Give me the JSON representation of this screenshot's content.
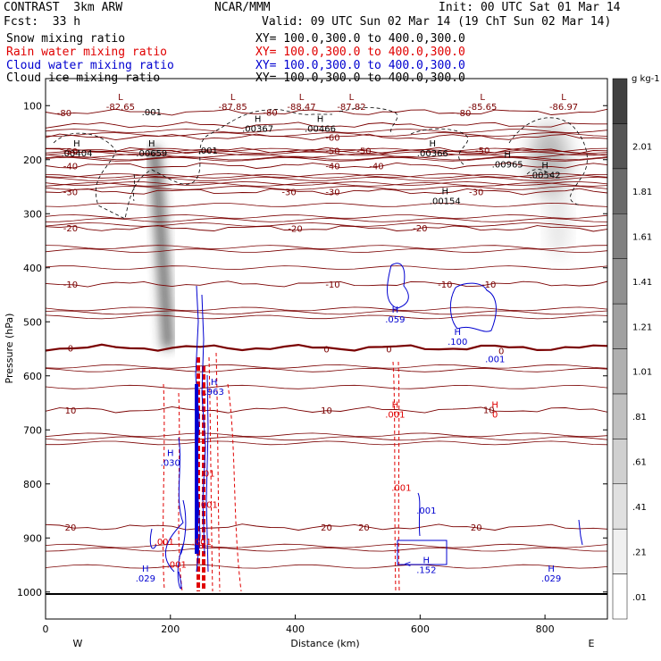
{
  "header": {
    "model": "CONTRAST  3km ARW",
    "org": "NCAR/MMM",
    "init": "Init: 00 UTC Sat 01 Mar 14",
    "fcst": "Fcst:  33 h",
    "valid": "Valid: 09 UTC Sun 02 Mar 14 (19 ChT Sun 02 Mar 14)",
    "fields": [
      {
        "name": "Snow mixing ratio",
        "xy": "XY= 100.0,300.0 to 400.0,300.0",
        "color": "#000000"
      },
      {
        "name": "Rain water mixing ratio",
        "xy": "XY= 100.0,300.0 to 400.0,300.0",
        "color": "#e00000"
      },
      {
        "name": "Cloud water mixing ratio",
        "xy": "XY= 100.0,300.0 to 400.0,300.0",
        "color": "#0000d0"
      },
      {
        "name": "Cloud ice mixing ratio",
        "xy": "XY= 100.0,300.0 to 400.0,300.0",
        "color": "#000000"
      }
    ]
  },
  "colors": {
    "temp": "#7a0000",
    "rain": "#e00000",
    "cloud": "#0000d0",
    "ice": "#000000",
    "snow_shade": "#444444"
  },
  "chart_data": {
    "type": "cross-section",
    "xlabel": "Distance (km)",
    "ylabel": "Pressure (hPa)",
    "xlim": [
      0,
      900
    ],
    "ylim": [
      1050,
      50
    ],
    "x_ticks": [
      0,
      200,
      400,
      600,
      800
    ],
    "y_ticks": [
      100,
      200,
      300,
      400,
      500,
      600,
      700,
      800,
      900,
      1000
    ],
    "x_end_labels": {
      "left": "W",
      "right": "E"
    },
    "isotherms": [
      {
        "temp": -80,
        "p": 112
      },
      {
        "temp": -70,
        "p": 136
      },
      {
        "temp": -60,
        "p": 158
      },
      {
        "temp": -50,
        "p": 183
      },
      {
        "temp": -40,
        "p": 211
      },
      {
        "temp": -30,
        "p": 259
      },
      {
        "temp": -20,
        "p": 327
      },
      {
        "temp": -10,
        "p": 430
      },
      {
        "temp": 0,
        "p": 548
      },
      {
        "temp": 10,
        "p": 663
      },
      {
        "temp": 20,
        "p": 880
      }
    ],
    "isotherm_labels": [
      {
        "text": "-80",
        "x": 30,
        "p": 113
      },
      {
        "text": "-80",
        "x": 360,
        "p": 112
      },
      {
        "text": "-80",
        "x": 670,
        "p": 113
      },
      {
        "text": "-60",
        "x": 460,
        "p": 158
      },
      {
        "text": "-50",
        "x": 40,
        "p": 184
      },
      {
        "text": "-50",
        "x": 460,
        "p": 183
      },
      {
        "text": "-50",
        "x": 510,
        "p": 183
      },
      {
        "text": "-50",
        "x": 700,
        "p": 182
      },
      {
        "text": "-40",
        "x": 40,
        "p": 211
      },
      {
        "text": "-40",
        "x": 460,
        "p": 211
      },
      {
        "text": "-40",
        "x": 530,
        "p": 211
      },
      {
        "text": "-30",
        "x": 40,
        "p": 259
      },
      {
        "text": "-30",
        "x": 390,
        "p": 259
      },
      {
        "text": "-30",
        "x": 460,
        "p": 259
      },
      {
        "text": "-30",
        "x": 690,
        "p": 259
      },
      {
        "text": "-20",
        "x": 40,
        "p": 326
      },
      {
        "text": "-20",
        "x": 400,
        "p": 327
      },
      {
        "text": "-20",
        "x": 600,
        "p": 326
      },
      {
        "text": "-10",
        "x": 40,
        "p": 430
      },
      {
        "text": "-10",
        "x": 460,
        "p": 430
      },
      {
        "text": "-10",
        "x": 640,
        "p": 430
      },
      {
        "text": "-10",
        "x": 710,
        "p": 430
      },
      {
        "text": "0",
        "x": 40,
        "p": 548
      },
      {
        "text": "0",
        "x": 450,
        "p": 550
      },
      {
        "text": "0",
        "x": 550,
        "p": 550
      },
      {
        "text": "0",
        "x": 730,
        "p": 553
      },
      {
        "text": "10",
        "x": 40,
        "p": 663
      },
      {
        "text": "10",
        "x": 450,
        "p": 663
      },
      {
        "text": "10",
        "x": 710,
        "p": 662
      },
      {
        "text": "20",
        "x": 40,
        "p": 880
      },
      {
        "text": "20",
        "x": 450,
        "p": 880
      },
      {
        "text": "20",
        "x": 510,
        "p": 880
      },
      {
        "text": "20",
        "x": 690,
        "p": 880
      }
    ],
    "extremes": [
      {
        "sym": "L",
        "value": "-82.65",
        "x": 120,
        "p": 90,
        "color": "#7a0000"
      },
      {
        "sym": "L",
        "value": "-87.85",
        "x": 300,
        "p": 90,
        "color": "#7a0000"
      },
      {
        "sym": "L",
        "value": "-88.47",
        "x": 410,
        "p": 90,
        "color": "#7a0000"
      },
      {
        "sym": "L",
        "value": "-87.82",
        "x": 490,
        "p": 90,
        "color": "#7a0000"
      },
      {
        "sym": "L",
        "value": "-85.65",
        "x": 700,
        "p": 90,
        "color": "#7a0000"
      },
      {
        "sym": "L",
        "value": "-86.97",
        "x": 830,
        "p": 90,
        "color": "#7a0000"
      },
      {
        "sym": "H",
        "value": ".00404",
        "x": 50,
        "p": 176,
        "color": "#000000"
      },
      {
        "sym": "H",
        "value": ".00659",
        "x": 170,
        "p": 176,
        "color": "#000000"
      },
      {
        "sym": "H",
        "value": ".00367",
        "x": 340,
        "p": 130,
        "color": "#000000"
      },
      {
        "sym": "H",
        "value": ".00466",
        "x": 440,
        "p": 130,
        "color": "#000000"
      },
      {
        "sym": "H",
        "value": ".00366",
        "x": 620,
        "p": 176,
        "color": "#000000"
      },
      {
        "sym": "H",
        "value": ".00965",
        "x": 740,
        "p": 196,
        "color": "#000000"
      },
      {
        "sym": "H",
        "value": ".00542",
        "x": 800,
        "p": 216,
        "color": "#000000"
      },
      {
        "sym": "H",
        "value": ".00154",
        "x": 640,
        "p": 264,
        "color": "#000000"
      },
      {
        "sym": "H",
        "value": ".059",
        "x": 560,
        "p": 483,
        "color": "#0000d0"
      },
      {
        "sym": "H",
        "value": ".100",
        "x": 660,
        "p": 524,
        "color": "#0000d0"
      },
      {
        "sym": "H",
        "value": ".963",
        "x": 270,
        "p": 617,
        "color": "#0000d0"
      },
      {
        "sym": "H",
        "value": ".030",
        "x": 200,
        "p": 748,
        "color": "#0000d0"
      },
      {
        "sym": "H",
        "value": ".029",
        "x": 160,
        "p": 962,
        "color": "#0000d0"
      },
      {
        "sym": "H",
        "value": ".152",
        "x": 610,
        "p": 947,
        "color": "#0000d0"
      },
      {
        "sym": "H",
        "value": ".029",
        "x": 810,
        "p": 962,
        "color": "#0000d0"
      },
      {
        "sym": "H",
        "value": ".001",
        "x": 560,
        "p": 659,
        "color": "#e00000"
      },
      {
        "sym": "H",
        "value": "0",
        "x": 720,
        "p": 659,
        "color": "#e00000"
      }
    ],
    "contour_labels": [
      {
        "text": ".001",
        "x": 170,
        "p": 111,
        "color": "#000000"
      },
      {
        "text": ".001",
        "x": 260,
        "p": 182,
        "color": "#000000"
      },
      {
        "text": ".001",
        "x": 610,
        "p": 848,
        "color": "#0000d0"
      },
      {
        "text": ".001",
        "x": 720,
        "p": 568,
        "color": "#0000d0"
      },
      {
        "text": ".001",
        "x": 570,
        "p": 806,
        "color": "#e00000"
      },
      {
        "text": ".001",
        "x": 190,
        "p": 906,
        "color": "#e00000"
      },
      {
        "text": ".001",
        "x": 210,
        "p": 948,
        "color": "#e00000"
      },
      {
        "text": ".001",
        "x": 260,
        "p": 838,
        "color": "#e00000"
      },
      {
        "text": ".001",
        "x": 250,
        "p": 906,
        "color": "#e00000"
      },
      {
        "text": ".01",
        "x": 260,
        "p": 780,
        "color": "#e00000"
      },
      {
        "text": "<",
        "x": 580,
        "p": 947,
        "color": "#0000d0"
      }
    ],
    "colorbar": {
      "unit": "g kg-1",
      "levels": [
        ".01",
        ".21",
        ".41",
        ".61",
        ".81",
        "1.01",
        "1.21",
        "1.41",
        "1.61",
        "1.81",
        "2.01"
      ],
      "colors": [
        "#ffffff",
        "#f0f0f0",
        "#e0e0e0",
        "#d0d0d0",
        "#c0c0c0",
        "#b0b0b0",
        "#a0a0a0",
        "#909090",
        "#808080",
        "#6a6a6a",
        "#555555",
        "#404040"
      ]
    }
  }
}
